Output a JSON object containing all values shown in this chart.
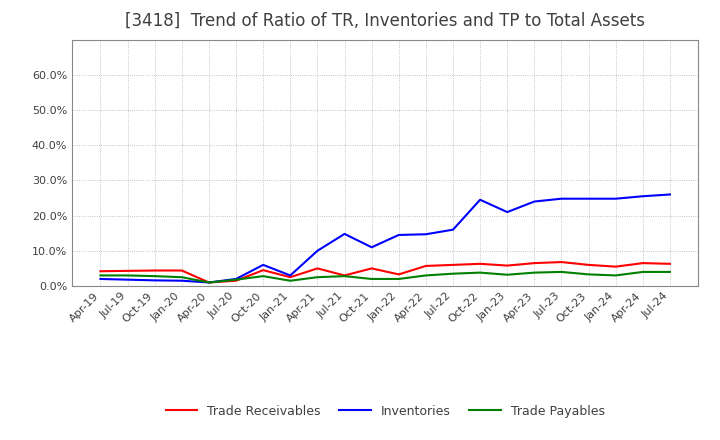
{
  "title": "[3418]  Trend of Ratio of TR, Inventories and TP to Total Assets",
  "x_labels": [
    "Apr-19",
    "Jul-19",
    "Oct-19",
    "Jan-20",
    "Apr-20",
    "Jul-20",
    "Oct-20",
    "Jan-21",
    "Apr-21",
    "Jul-21",
    "Oct-21",
    "Jan-22",
    "Apr-22",
    "Jul-22",
    "Oct-22",
    "Jan-23",
    "Apr-23",
    "Jul-23",
    "Oct-23",
    "Jan-24",
    "Apr-24",
    "Jul-24"
  ],
  "trade_receivables": [
    0.042,
    0.043,
    0.044,
    0.044,
    0.01,
    0.015,
    0.045,
    0.025,
    0.05,
    0.03,
    0.05,
    0.033,
    0.057,
    0.06,
    0.063,
    0.058,
    0.065,
    0.068,
    0.06,
    0.055,
    0.065,
    0.063
  ],
  "inventories": [
    0.02,
    0.018,
    0.016,
    0.015,
    0.01,
    0.02,
    0.06,
    0.03,
    0.1,
    0.148,
    0.11,
    0.145,
    0.147,
    0.16,
    0.245,
    0.21,
    0.24,
    0.248,
    0.248,
    0.248,
    0.255,
    0.26
  ],
  "trade_payables": [
    0.03,
    0.03,
    0.028,
    0.025,
    0.01,
    0.018,
    0.028,
    0.015,
    0.025,
    0.028,
    0.02,
    0.02,
    0.03,
    0.035,
    0.038,
    0.032,
    0.038,
    0.04,
    0.033,
    0.03,
    0.04,
    0.04
  ],
  "line_colors": {
    "trade_receivables": "#ff0000",
    "inventories": "#0000ff",
    "trade_payables": "#008000"
  },
  "legend_labels": {
    "trade_receivables": "Trade Receivables",
    "inventories": "Inventories",
    "trade_payables": "Trade Payables"
  },
  "ylim": [
    0.0,
    0.7
  ],
  "yticks": [
    0.0,
    0.1,
    0.2,
    0.3,
    0.4,
    0.5,
    0.6
  ],
  "ytick_labels": [
    "0.0%",
    "10.0%",
    "20.0%",
    "30.0%",
    "40.0%",
    "50.0%",
    "60.0%"
  ],
  "background_color": "#ffffff",
  "grid_color": "#aaaaaa",
  "title_fontsize": 12,
  "title_color": "#404040",
  "legend_fontsize": 9,
  "tick_fontsize": 8,
  "tick_color": "#404040",
  "line_width": 1.5
}
